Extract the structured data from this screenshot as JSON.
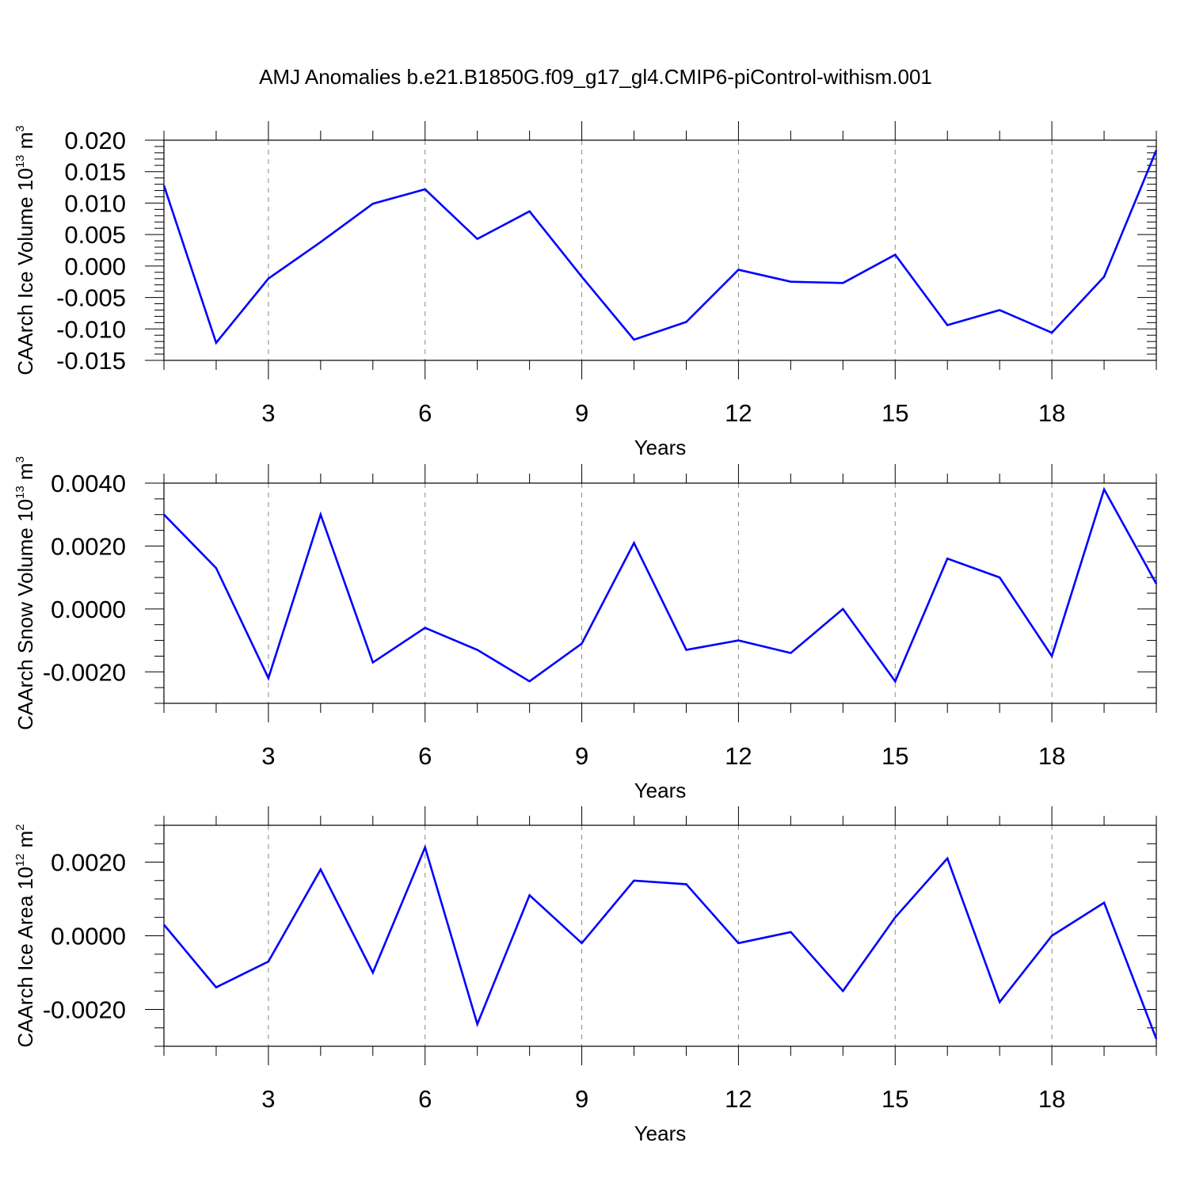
{
  "title": "AMJ Anomalies b.e21.B1850G.f09_g17_gl4.CMIP6-piControl-withism.001",
  "colors": {
    "line": "#0000ff",
    "frame": "#000000",
    "grid": "#888888",
    "background": "#ffffff"
  },
  "chart_data": [
    {
      "type": "line",
      "ylabel": {
        "prefix": "CAArch Ice Volume 10",
        "exponent": "13",
        "unit": " m",
        "unit_exponent": "3"
      },
      "xlabel": "Years",
      "xlim": [
        1,
        20
      ],
      "ylim": [
        -0.015,
        0.02
      ],
      "x_ticks": [
        3,
        6,
        9,
        12,
        15,
        18
      ],
      "y_ticks": [
        -0.015,
        -0.01,
        -0.005,
        0.0,
        0.005,
        0.01,
        0.015,
        0.02
      ],
      "y_tick_labels": [
        "-0.015",
        "-0.010",
        "-0.005",
        "0.000",
        "0.005",
        "0.010",
        "0.015",
        "0.020"
      ],
      "y_minor_step": 0.001,
      "x": [
        1,
        2,
        3,
        4,
        5,
        6,
        7,
        8,
        9,
        10,
        11,
        12,
        13,
        14,
        15,
        16,
        17,
        18,
        19,
        20
      ],
      "series": [
        {
          "values": [
            0.0128,
            -0.0122,
            -0.002,
            0.0038,
            0.0099,
            0.0122,
            0.0043,
            0.0087,
            -0.0017,
            -0.0117,
            -0.0089,
            -0.0006,
            -0.0025,
            -0.0027,
            0.0018,
            -0.0094,
            -0.007,
            -0.0106,
            -0.0017,
            0.0184
          ]
        }
      ],
      "grid": "vertical dashed at major x ticks"
    },
    {
      "type": "line",
      "ylabel": {
        "prefix": "CAArch Snow Volume 10",
        "exponent": "13",
        "unit": " m",
        "unit_exponent": "3"
      },
      "xlabel": "Years",
      "xlim": [
        1,
        20
      ],
      "ylim": [
        -0.003,
        0.004
      ],
      "x_ticks": [
        3,
        6,
        9,
        12,
        15,
        18
      ],
      "y_ticks": [
        -0.002,
        0.0,
        0.002,
        0.004
      ],
      "y_tick_labels": [
        "-0.0020",
        "0.0000",
        "0.0020",
        "0.0040"
      ],
      "y_minor_step": 0.0005,
      "x": [
        1,
        2,
        3,
        4,
        5,
        6,
        7,
        8,
        9,
        10,
        11,
        12,
        13,
        14,
        15,
        16,
        17,
        18,
        19,
        20
      ],
      "series": [
        {
          "values": [
            0.003,
            0.0013,
            -0.0022,
            0.003,
            -0.0017,
            -0.0006,
            -0.0013,
            -0.0023,
            -0.0011,
            0.0021,
            -0.0013,
            -0.001,
            -0.0014,
            0.0,
            -0.0023,
            0.0016,
            0.001,
            -0.0015,
            0.0038,
            0.0008
          ]
        }
      ],
      "grid": "vertical dashed at major x ticks"
    },
    {
      "type": "line",
      "ylabel": {
        "prefix": "CAArch Ice Area 10",
        "exponent": "12",
        "unit": " m",
        "unit_exponent": "2"
      },
      "xlabel": "Years",
      "xlim": [
        1,
        20
      ],
      "ylim": [
        -0.003,
        0.003
      ],
      "x_ticks": [
        3,
        6,
        9,
        12,
        15,
        18
      ],
      "y_ticks": [
        -0.002,
        0.0,
        0.002
      ],
      "y_tick_labels": [
        "-0.0020",
        "0.0000",
        "0.0020"
      ],
      "y_minor_step": 0.0005,
      "x": [
        1,
        2,
        3,
        4,
        5,
        6,
        7,
        8,
        9,
        10,
        11,
        12,
        13,
        14,
        15,
        16,
        17,
        18,
        19,
        20
      ],
      "series": [
        {
          "values": [
            0.0003,
            -0.0014,
            -0.0007,
            0.0018,
            -0.001,
            0.0024,
            -0.0024,
            0.0011,
            -0.0002,
            0.0015,
            0.0014,
            -0.0002,
            0.0001,
            -0.0015,
            0.0005,
            0.0021,
            -0.0018,
            0.0,
            0.0009,
            -0.0028
          ]
        }
      ],
      "grid": "vertical dashed at major x ticks"
    }
  ]
}
